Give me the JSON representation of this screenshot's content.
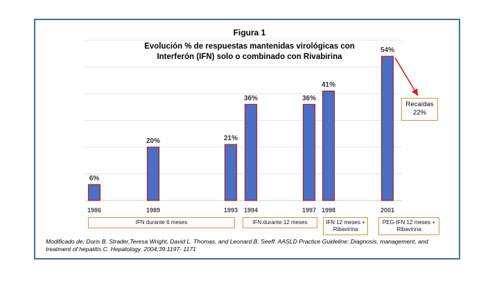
{
  "figure_label": "Figura 1",
  "title_line1": "Evolución % de respuestas mantenidas virológicas con",
  "title_line2": "Interferón (IFN) solo o combinado con Rivabirina",
  "relapse": {
    "line1": "Recaídas",
    "line2": "22%"
  },
  "periods": [
    {
      "label_lines": [
        "IFN durante 6 meses"
      ]
    },
    {
      "label_lines": [
        "IFN durante 12 meses"
      ]
    },
    {
      "label_lines": [
        "IFN 12 meses +",
        "Ribavirina"
      ]
    },
    {
      "label_lines": [
        "PEG-IFN 12 meses +",
        "Ribavirina"
      ]
    }
  ],
  "footnote": "Modificado de: Doris B. Strader,Teresa Wright, David L. Thomas, and Leonard B. Seeff. AASLD Practice Guideline: Diagnosis, management, and treatment of hepatitis C. Hepatology, 2004;39:1197- 1171",
  "colors": {
    "bar_fill": "#4a6fc4",
    "bar_stroke": "#b22222",
    "box_border": "#e8893a",
    "arrow": "#d62020",
    "frame": "#3c6fb0"
  },
  "chart_data": {
    "type": "bar",
    "title": "Evolución % de respuestas mantenidas virológicas con Interferón (IFN) solo o combinado con Rivabirina",
    "xlabel": "",
    "ylabel": "",
    "ylim": [
      0,
      60
    ],
    "grid": true,
    "categories": [
      "1986",
      "1989",
      "1993",
      "1994",
      "1997",
      "1998",
      "2001"
    ],
    "values": [
      6,
      20,
      21,
      36,
      36,
      41,
      54
    ],
    "data_labels": [
      "6%",
      "20%",
      "21%",
      "36%",
      "36%",
      "41%",
      "54%"
    ]
  }
}
